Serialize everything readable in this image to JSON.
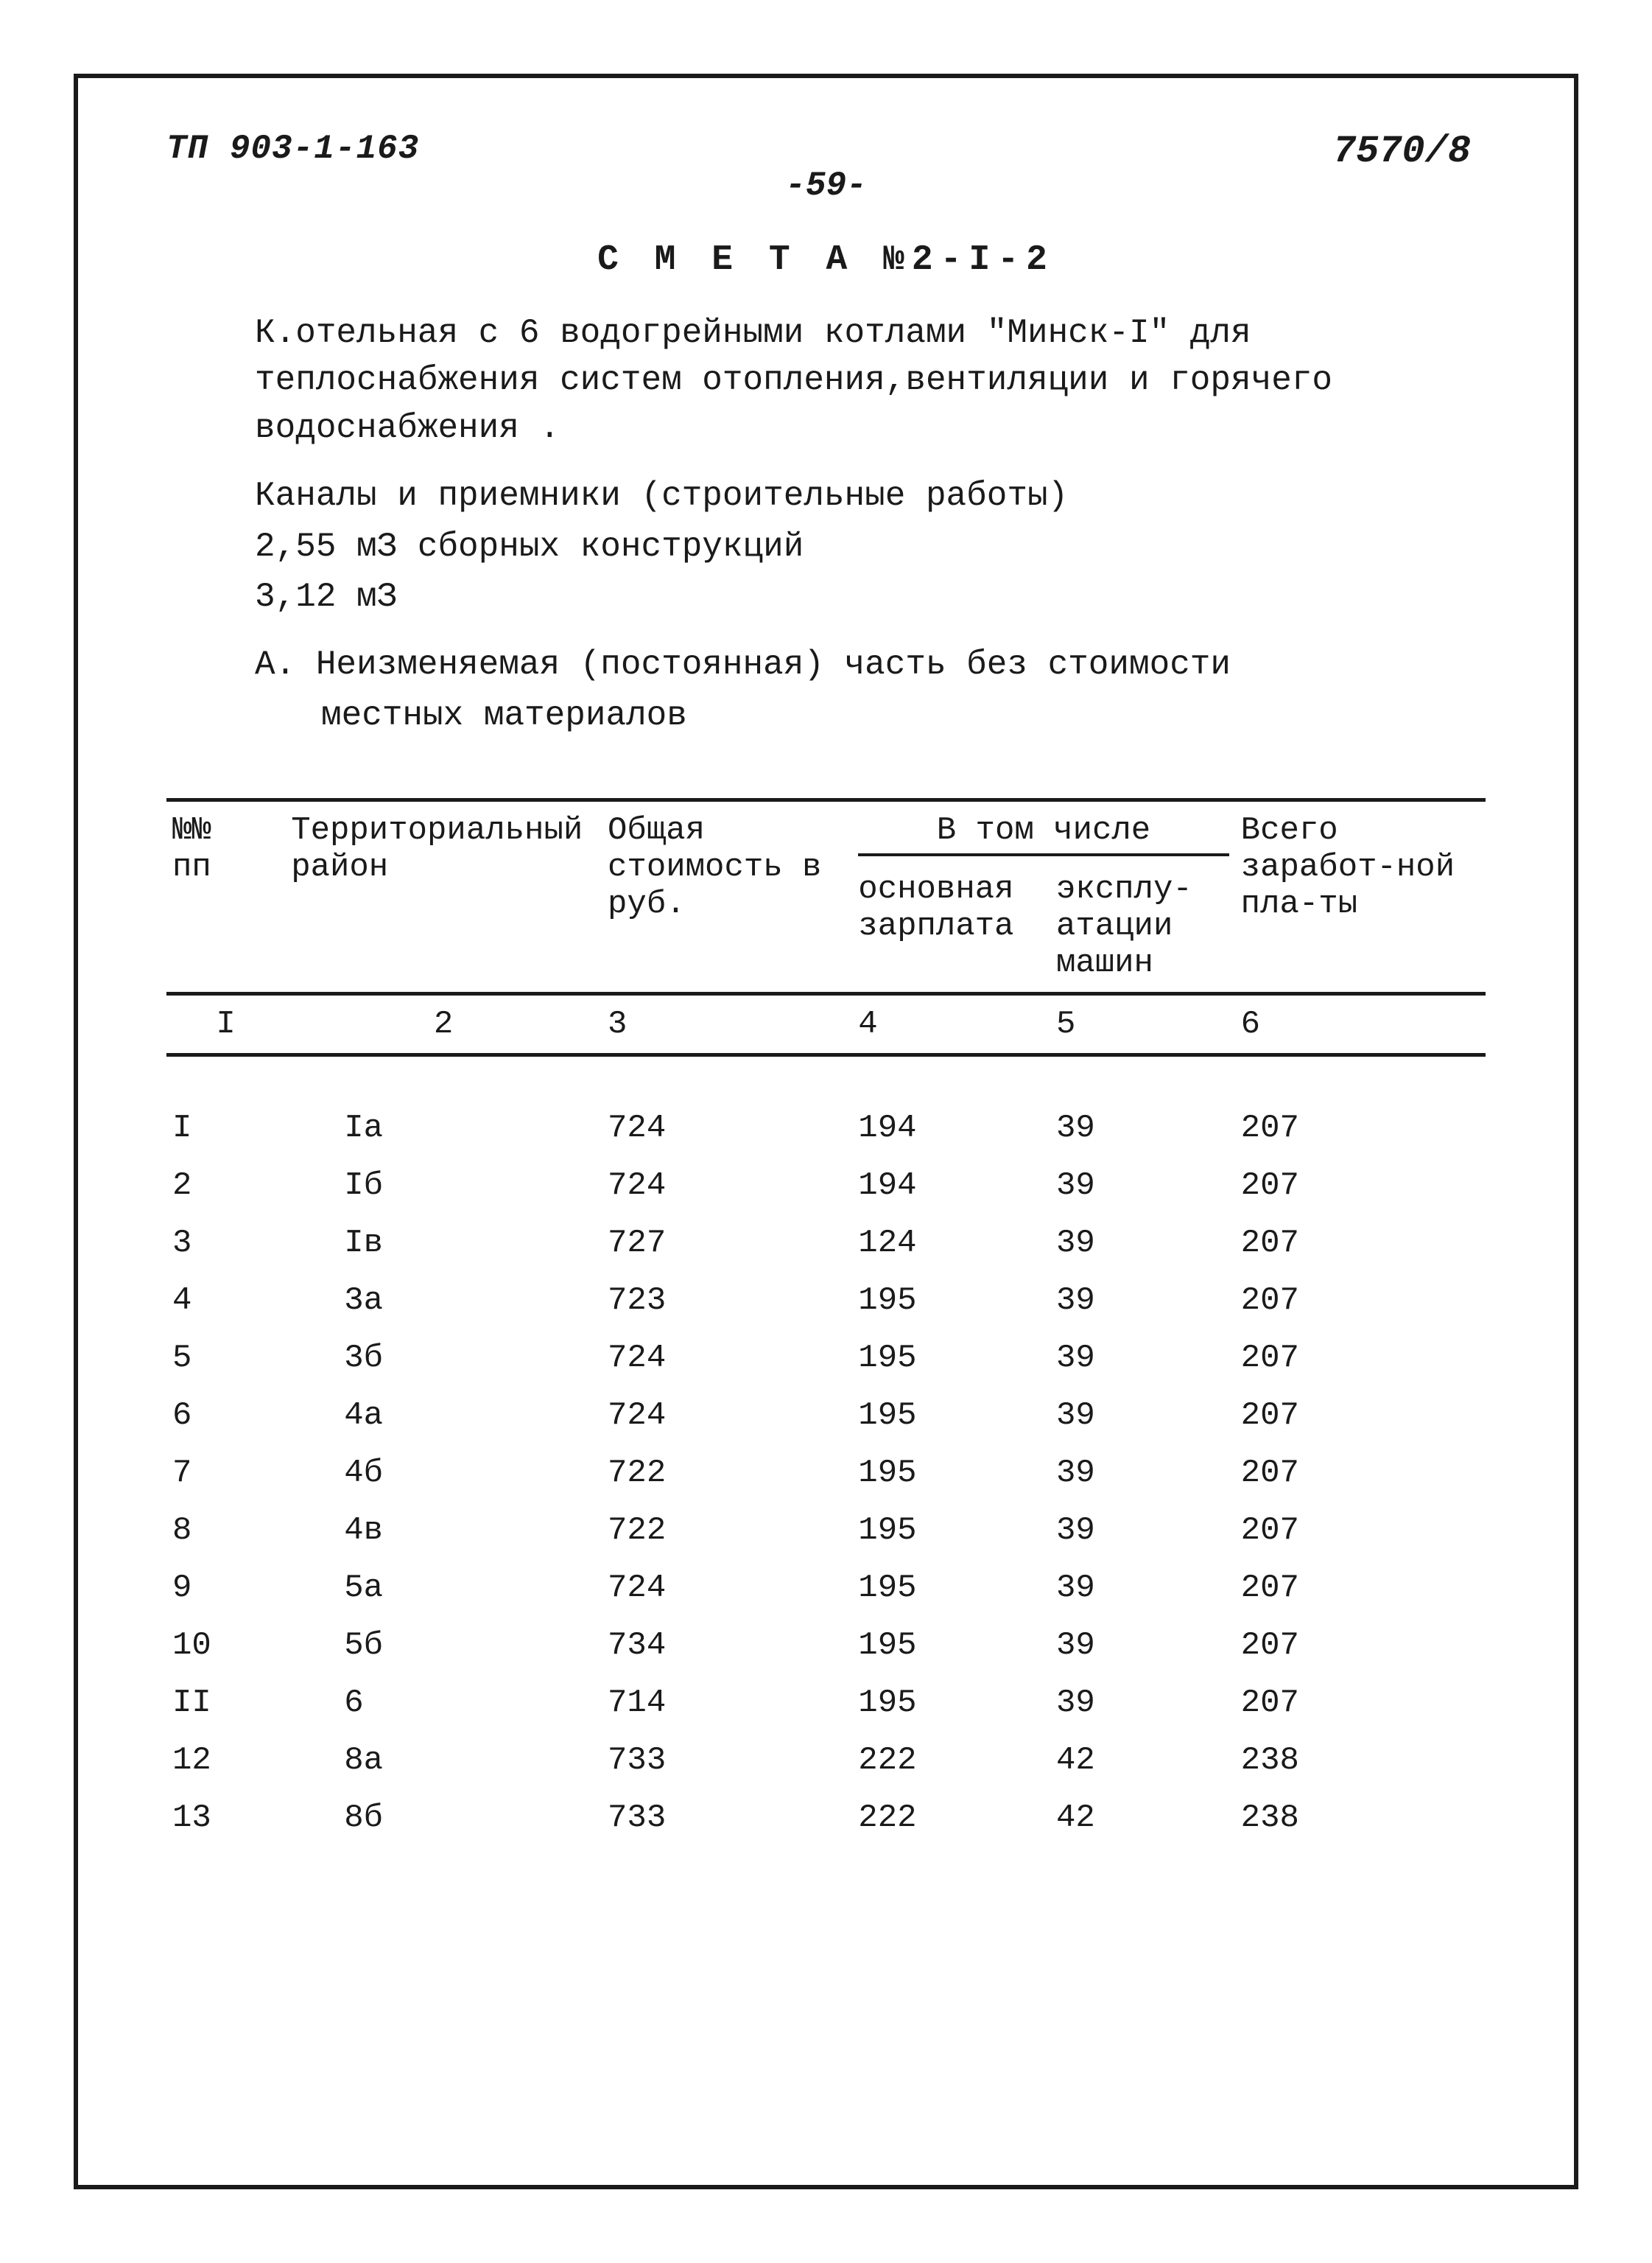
{
  "header": {
    "left": "ТП 903-1-163",
    "center": "-59-",
    "right": "7570/8"
  },
  "title": "С М Е Т А  №2-I-2",
  "intro": {
    "p1": "К.отельная с 6 водогрейными котлами  \"Минск-I\" для теплоснабжения систем отопления,вентиляции и горячего водоснабжения .",
    "p2": "Каналы и приемники (строительные работы)",
    "p3": "2,55 мЗ сборных конструкций",
    "p4": "3,12 мЗ",
    "p5a": "А. Неизменяемая (постоянная) часть без стоимости",
    "p5b": "местных материалов"
  },
  "table": {
    "header": {
      "c1": "№№\nпп",
      "c2": "Территориальный район",
      "c3": "Общая стоимость в руб.",
      "sub_title": "В том числе",
      "c4": "основная зарплата",
      "c5": "эксплу-атации машин",
      "c6": "Всего заработ-ной пла-ты"
    },
    "numrow": [
      "I",
      "2",
      "3",
      "4",
      "5",
      "6"
    ],
    "rows": [
      {
        "n": "I",
        "r": "Iа",
        "c3": "724",
        "c4": "194",
        "c5": "39",
        "c6": "207"
      },
      {
        "n": "2",
        "r": "Iб",
        "c3": "724",
        "c4": "194",
        "c5": "39",
        "c6": "207"
      },
      {
        "n": "3",
        "r": "Iв",
        "c3": "727",
        "c4": "124",
        "c5": "39",
        "c6": "207"
      },
      {
        "n": "4",
        "r": "3а",
        "c3": "723",
        "c4": "195",
        "c5": "39",
        "c6": "207"
      },
      {
        "n": "5",
        "r": "3б",
        "c3": "724",
        "c4": "195",
        "c5": "39",
        "c6": "207"
      },
      {
        "n": "6",
        "r": "4а",
        "c3": "724",
        "c4": "195",
        "c5": "39",
        "c6": "207"
      },
      {
        "n": "7",
        "r": "4б",
        "c3": "722",
        "c4": "195",
        "c5": "39",
        "c6": "207"
      },
      {
        "n": "8",
        "r": "4в",
        "c3": "722",
        "c4": "195",
        "c5": "39",
        "c6": "207"
      },
      {
        "n": "9",
        "r": "5а",
        "c3": "724",
        "c4": "195",
        "c5": "39",
        "c6": "207"
      },
      {
        "n": "10",
        "r": "5б",
        "c3": "734",
        "c4": "195",
        "c5": "39",
        "c6": "207"
      },
      {
        "n": "II",
        "r": "6",
        "c3": "714",
        "c4": "195",
        "c5": "39",
        "c6": "207"
      },
      {
        "n": "12",
        "r": "8а",
        "c3": "733",
        "c4": "222",
        "c5": "42",
        "c6": "238"
      },
      {
        "n": "13",
        "r": "8б",
        "c3": "733",
        "c4": "222",
        "c5": "42",
        "c6": "238"
      }
    ]
  }
}
